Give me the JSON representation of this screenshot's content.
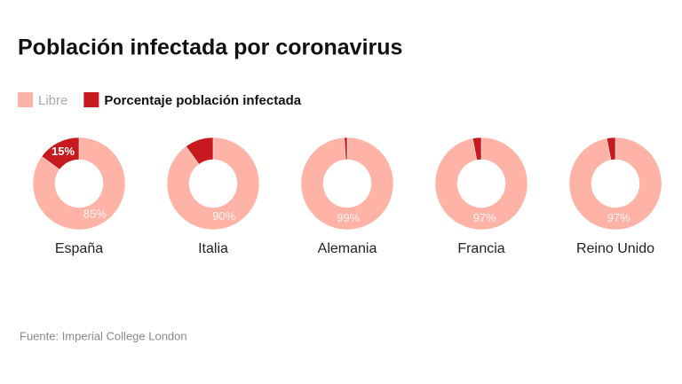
{
  "title": "Población infectada por coronavirus",
  "legend": [
    {
      "name": "Libre",
      "color": "#ffb3a6"
    },
    {
      "name": "Porcentaje población infectada",
      "color": "#c8191f"
    }
  ],
  "source": "Fuente: Imperial College London",
  "chart_data": [
    {
      "type": "donut",
      "title": "España",
      "values": [
        85,
        15
      ],
      "value_labels": [
        "85%",
        "15%"
      ]
    },
    {
      "type": "donut",
      "title": "Italia",
      "values": [
        90,
        10
      ],
      "value_labels": [
        "90%",
        null
      ]
    },
    {
      "type": "donut",
      "title": "Alemania",
      "values": [
        99,
        1
      ],
      "value_labels": [
        "99%",
        null
      ]
    },
    {
      "type": "donut",
      "title": "Francia",
      "values": [
        97,
        3
      ],
      "value_labels": [
        "97%",
        null
      ]
    },
    {
      "type": "donut",
      "title": "Reino Unido",
      "values": [
        97,
        3
      ],
      "value_labels": [
        "97%",
        null
      ]
    }
  ]
}
